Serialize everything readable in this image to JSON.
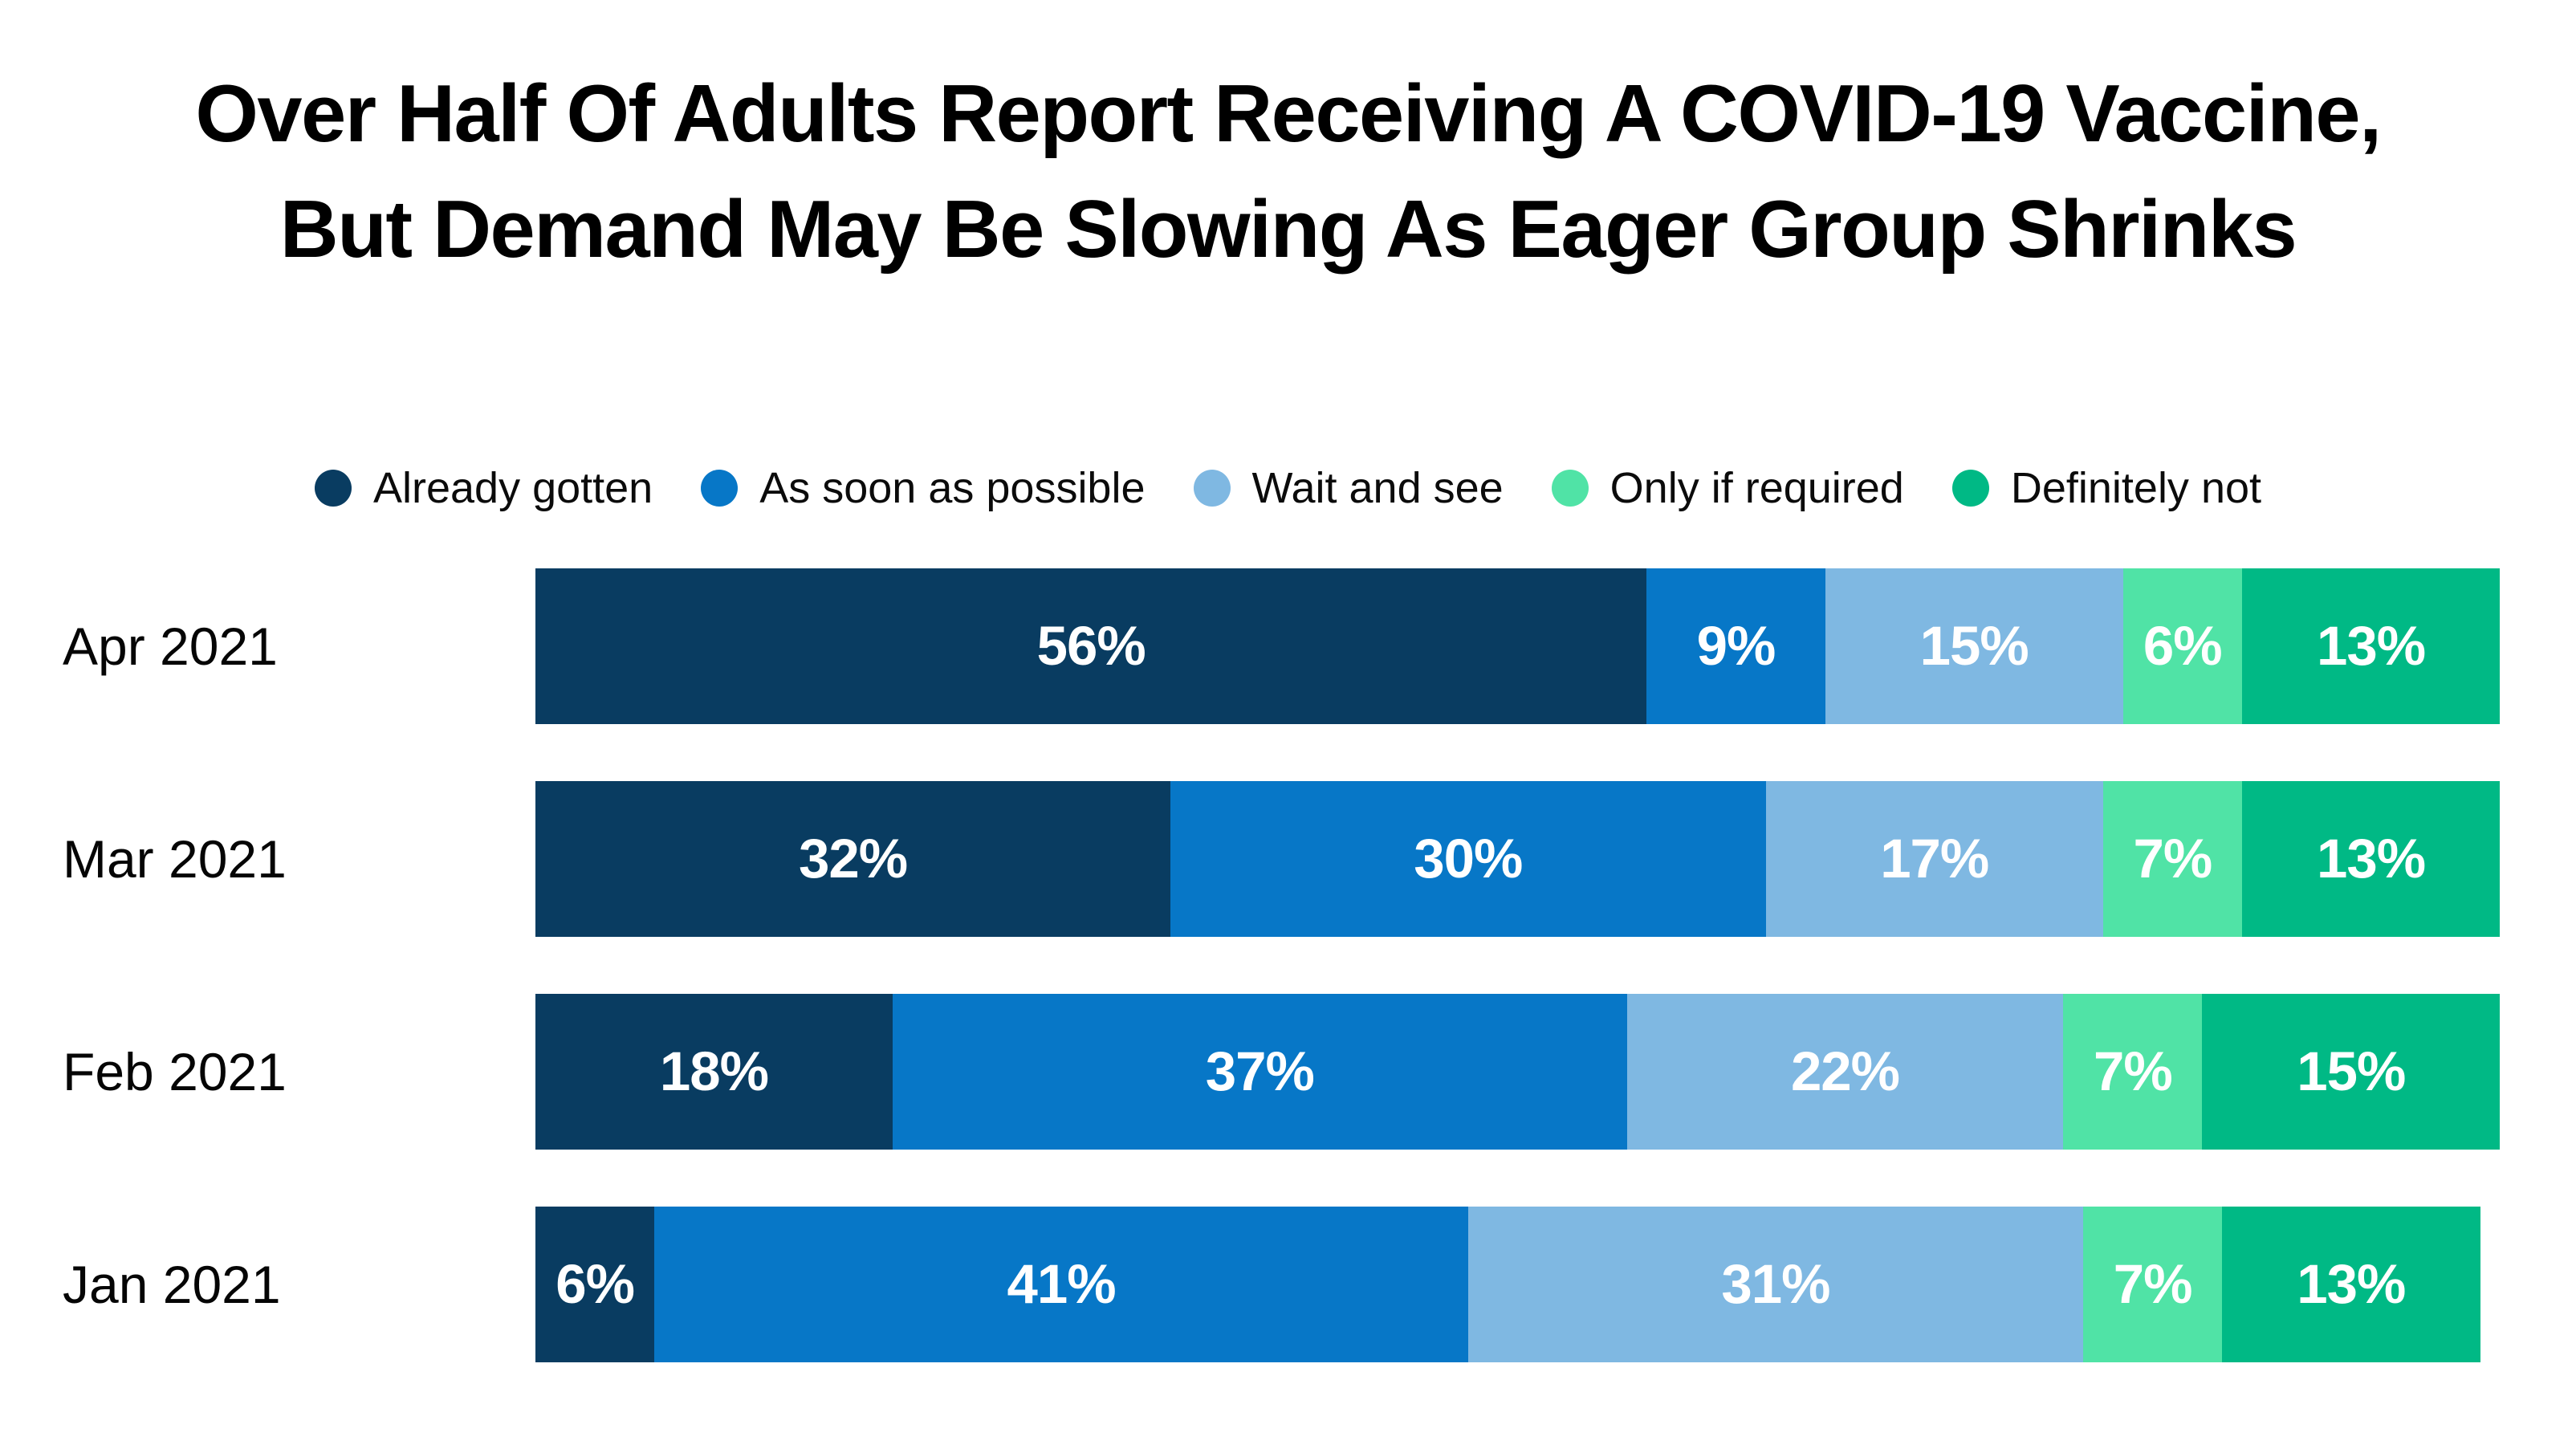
{
  "title": {
    "line1": "Over Half Of Adults Report Receiving A COVID-19 Vaccine,",
    "line2": "But Demand May Be Slowing As Eager Group Shrinks"
  },
  "legend": [
    {
      "label": "Already gotten",
      "color": "#093C61",
      "icon": "circle-swatch"
    },
    {
      "label": "As soon as possible",
      "color": "#0777C7",
      "icon": "circle-swatch"
    },
    {
      "label": "Wait and see",
      "color": "#7FB8E2",
      "icon": "circle-swatch"
    },
    {
      "label": "Only if required",
      "color": "#50E3A6",
      "icon": "circle-swatch"
    },
    {
      "label": "Definitely not",
      "color": "#00B985",
      "icon": "circle-swatch"
    }
  ],
  "chart_data": {
    "type": "bar",
    "stacked": true,
    "orientation": "horizontal",
    "title": "Over Half Of Adults Report Receiving A COVID-19 Vaccine, But Demand May Be Slowing As Eager Group Shrinks",
    "categories": [
      "Apr 2021",
      "Mar 2021",
      "Feb 2021",
      "Jan 2021"
    ],
    "series": [
      {
        "name": "Already gotten",
        "color": "#093C61",
        "values": [
          56,
          32,
          18,
          6
        ]
      },
      {
        "name": "As soon as possible",
        "color": "#0777C7",
        "values": [
          9,
          30,
          37,
          41
        ]
      },
      {
        "name": "Wait and see",
        "color": "#7FB8E2",
        "values": [
          15,
          17,
          22,
          31
        ]
      },
      {
        "name": "Only if required",
        "color": "#50E3A6",
        "values": [
          6,
          7,
          7,
          7
        ]
      },
      {
        "name": "Definitely not",
        "color": "#00B985",
        "values": [
          13,
          13,
          15,
          13
        ]
      }
    ],
    "value_suffix": "%",
    "data_labels": true,
    "xlim": [
      0,
      100
    ],
    "grid": false,
    "legend_position": "top",
    "background": "#ffffff",
    "label_color": "#ffffff"
  }
}
